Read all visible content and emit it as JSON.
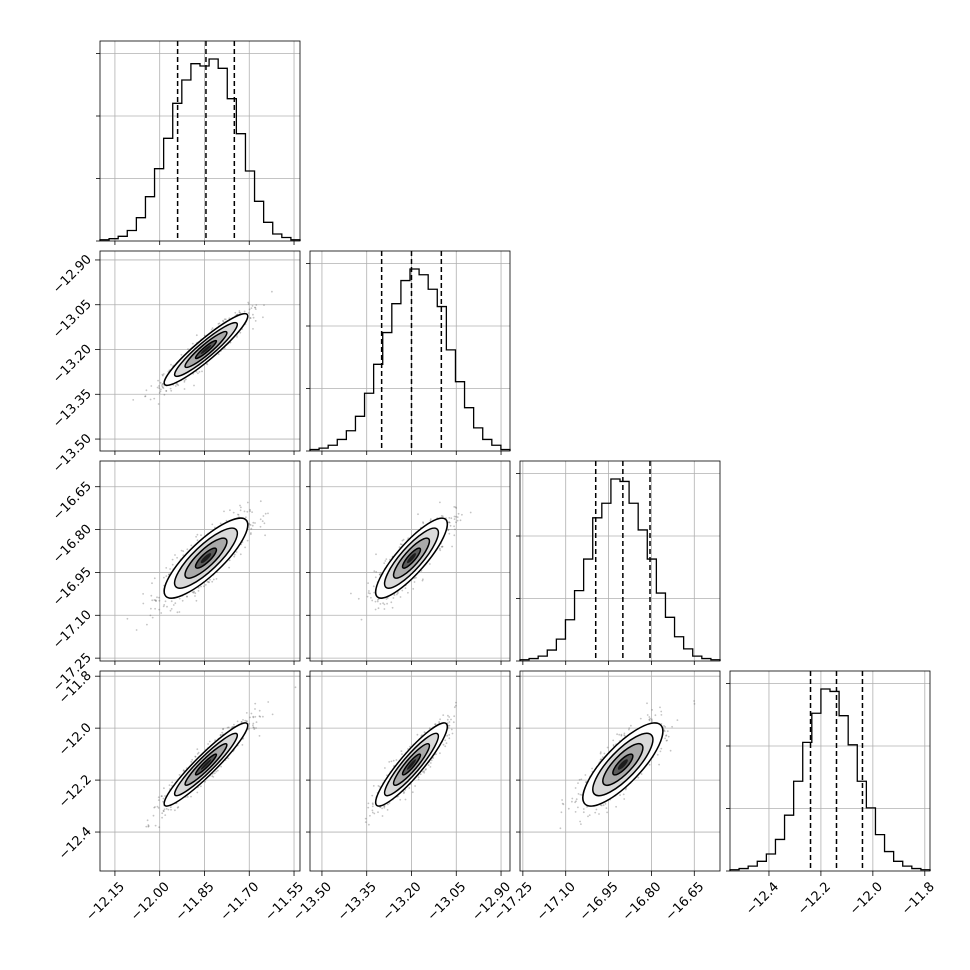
{
  "chart_data": {
    "type": "corner",
    "grid": true,
    "params": [
      {
        "range": [
          -12.2,
          -11.53
        ],
        "ticks": [
          -12.15,
          -12.0,
          -11.85,
          -11.7,
          -11.55
        ],
        "tick_labels": [
          "−12.15",
          "−12.00",
          "−11.85",
          "−11.70",
          "−11.55"
        ],
        "quantiles": [
          -11.94,
          -11.845,
          -11.75
        ]
      },
      {
        "range": [
          -13.54,
          -12.87
        ],
        "ticks": [
          -13.5,
          -13.35,
          -13.2,
          -13.05,
          -12.9
        ],
        "tick_labels": [
          "−13.50",
          "−13.35",
          "−13.20",
          "−13.05",
          "−12.90"
        ],
        "quantiles": [
          -13.3,
          -13.2,
          -13.1
        ]
      },
      {
        "range": [
          -17.26,
          -16.56
        ],
        "ticks": [
          -17.25,
          -17.1,
          -16.95,
          -16.8,
          -16.65
        ],
        "tick_labels": [
          "−17.25",
          "−17.10",
          "−16.95",
          "−16.80",
          "−16.65"
        ],
        "quantiles": [
          -16.995,
          -16.9,
          -16.805
        ]
      },
      {
        "range": [
          -12.55,
          -11.78
        ],
        "ticks": [
          -12.4,
          -12.2,
          -12.0,
          -11.8
        ],
        "tick_labels": [
          "−12.4",
          "−12.2",
          "−12.0",
          "−11.8"
        ],
        "quantiles": [
          -12.24,
          -12.14,
          -12.04
        ]
      }
    ],
    "histograms": [
      [
        1,
        2,
        4,
        9,
        20,
        38,
        62,
        88,
        118,
        138,
        152,
        150,
        156,
        148,
        122,
        92,
        60,
        34,
        16,
        6,
        3,
        1
      ],
      [
        1,
        2,
        4,
        8,
        14,
        24,
        40,
        60,
        82,
        102,
        118,
        126,
        122,
        112,
        100,
        70,
        48,
        30,
        16,
        8,
        4,
        1
      ],
      [
        1,
        2,
        4,
        9,
        18,
        34,
        58,
        84,
        118,
        130,
        150,
        148,
        130,
        108,
        84,
        56,
        36,
        20,
        10,
        4,
        2,
        1
      ],
      [
        1,
        2,
        4,
        8,
        14,
        26,
        46,
        74,
        106,
        130,
        150,
        148,
        128,
        104,
        74,
        52,
        30,
        16,
        8,
        4,
        2,
        1
      ]
    ],
    "pairs": [
      {
        "row": 1,
        "col": 0,
        "center": [
          -11.845,
          -13.2
        ],
        "sd": [
          0.07,
          0.06
        ],
        "corr": 0.93
      },
      {
        "row": 2,
        "col": 0,
        "center": [
          -11.845,
          -16.9
        ],
        "sd": [
          0.07,
          0.07
        ],
        "corr": 0.83
      },
      {
        "row": 2,
        "col": 1,
        "center": [
          -13.2,
          -16.9
        ],
        "sd": [
          0.06,
          0.07
        ],
        "corr": 0.85
      },
      {
        "row": 3,
        "col": 0,
        "center": [
          -11.845,
          -12.14
        ],
        "sd": [
          0.07,
          0.08
        ],
        "corr": 0.94
      },
      {
        "row": 3,
        "col": 1,
        "center": [
          -13.2,
          -12.14
        ],
        "sd": [
          0.06,
          0.08
        ],
        "corr": 0.91
      },
      {
        "row": 3,
        "col": 2,
        "center": [
          -16.9,
          -12.14
        ],
        "sd": [
          0.07,
          0.08
        ],
        "corr": 0.8
      }
    ],
    "contour_levels_sigma": [
      0.5,
      1.0,
      1.5,
      2.0
    ]
  }
}
